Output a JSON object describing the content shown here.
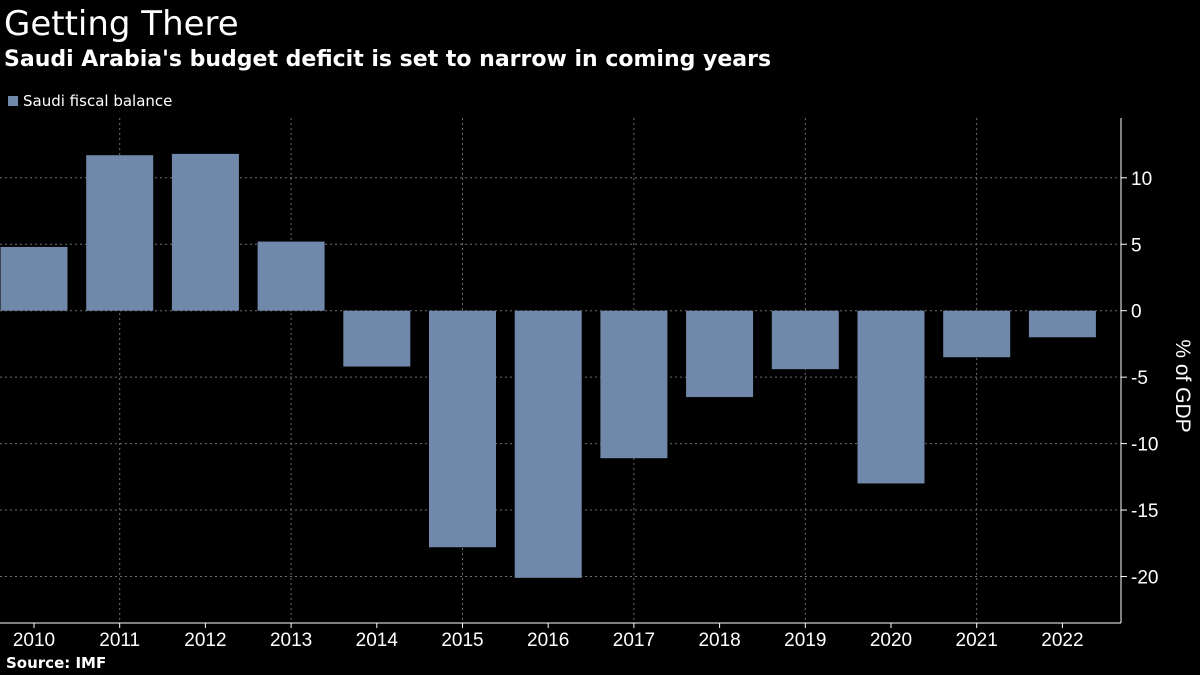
{
  "header": {
    "title": "Getting There",
    "subtitle": "Saudi Arabia's budget deficit is set to narrow in coming years"
  },
  "footer": {
    "source": "Source: IMF"
  },
  "chart_data": {
    "type": "bar",
    "title": "Getting There",
    "subtitle": "Saudi Arabia's budget deficit is set to narrow in coming years",
    "categories": [
      "2010",
      "2011",
      "2012",
      "2013",
      "2014",
      "2015",
      "2016",
      "2017",
      "2018",
      "2019",
      "2020",
      "2021",
      "2022"
    ],
    "series": [
      {
        "name": "Saudi fiscal balance",
        "color": "#7089ab",
        "values": [
          4.8,
          11.7,
          11.8,
          5.2,
          -4.2,
          -17.8,
          -20.1,
          -11.1,
          -6.5,
          -4.4,
          -13.0,
          -3.5,
          -2.0
        ]
      }
    ],
    "xlabel": "",
    "ylabel": "% of GDP",
    "ylim": [
      -23.5,
      14.5
    ],
    "yticks": [
      10,
      5,
      0,
      -5,
      -10,
      -15,
      -20
    ],
    "ytick_labels": [
      "10",
      "5",
      "0",
      "-5",
      "-10",
      "-15",
      "-20"
    ],
    "grid": true,
    "legend_position": "top-left",
    "axis_side": "right"
  }
}
